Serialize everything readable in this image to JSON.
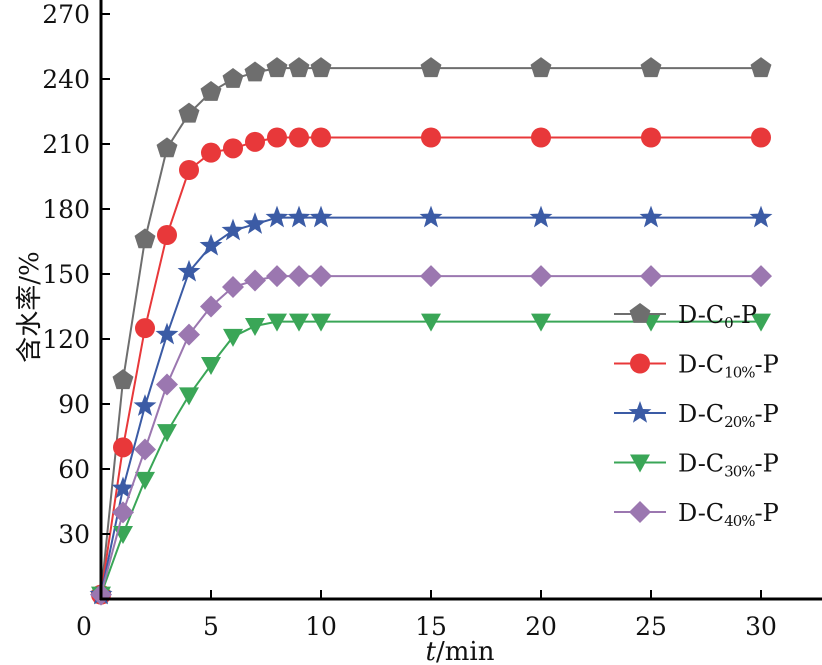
{
  "chart_data": {
    "type": "line",
    "title": "",
    "xlabel": {
      "italic": "t",
      "rest": "/min"
    },
    "ylabel": "含水率/%",
    "xlim": [
      0,
      32.8
    ],
    "ylim": [
      0,
      270
    ],
    "xticks": [
      0,
      5,
      10,
      15,
      20,
      25,
      30
    ],
    "yticks": [
      30,
      60,
      90,
      120,
      150,
      180,
      210,
      240,
      270
    ],
    "x": [
      0,
      1,
      2,
      3,
      4,
      5,
      6,
      7,
      8,
      9,
      10,
      15,
      20,
      25,
      30
    ],
    "legend_position": "bottom-right",
    "grid": false,
    "series": [
      {
        "name": "D-C0-P",
        "label": {
          "pre": "D-C",
          "sub": "0",
          "post": "-P"
        },
        "color": "#6e6e6e",
        "marker": "pentagon",
        "values": [
          2,
          101,
          166,
          208,
          224,
          234,
          240,
          243,
          245,
          245,
          245,
          245,
          245,
          245,
          245
        ]
      },
      {
        "name": "D-C10%-P",
        "label": {
          "pre": "D-C",
          "sub": "10%",
          "post": "-P"
        },
        "color": "#e8383a",
        "marker": "circle",
        "values": [
          2,
          70,
          125,
          168,
          198,
          206,
          208,
          211,
          213,
          213,
          213,
          213,
          213,
          213,
          213
        ]
      },
      {
        "name": "D-C20%-P",
        "label": {
          "pre": "D-C",
          "sub": "20%",
          "post": "-P"
        },
        "color": "#3b5ba5",
        "marker": "star",
        "values": [
          2,
          51,
          89,
          122,
          151,
          163,
          170,
          173,
          176,
          176,
          176,
          176,
          176,
          176,
          176
        ]
      },
      {
        "name": "D-C30%-P",
        "label": {
          "pre": "D-C",
          "sub": "30%",
          "post": "-P"
        },
        "color": "#3aa657",
        "marker": "triangle-down",
        "values": [
          2,
          30,
          55,
          77,
          94,
          108,
          121,
          126,
          128,
          128,
          128,
          128,
          128,
          128,
          128
        ]
      },
      {
        "name": "D-C40%-P",
        "label": {
          "pre": "D-C",
          "sub": "40%",
          "post": "-P"
        },
        "color": "#9b77b0",
        "marker": "diamond",
        "values": [
          2,
          40,
          69,
          99,
          122,
          135,
          144,
          147,
          149,
          149,
          149,
          149,
          149,
          149,
          149
        ]
      }
    ]
  }
}
